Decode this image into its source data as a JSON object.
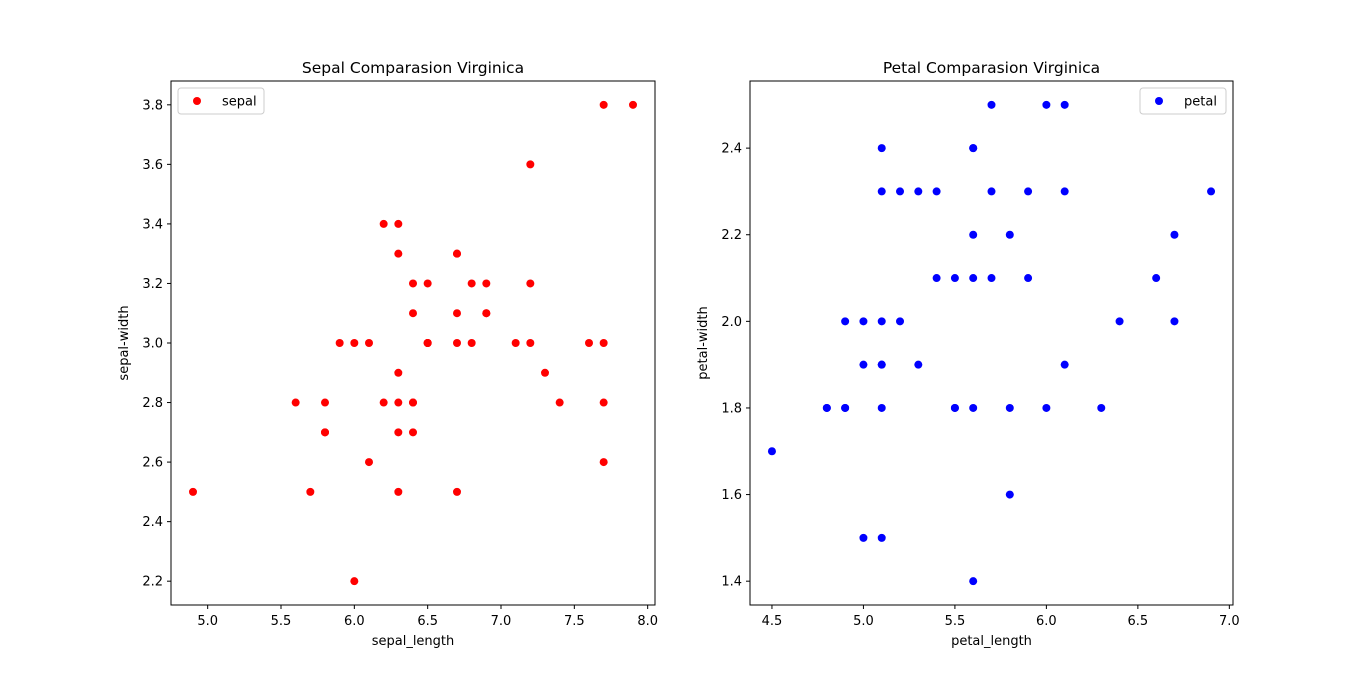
{
  "chart_data": [
    {
      "type": "scatter",
      "title": "Sepal Comparasion Virginica",
      "xlabel": "sepal_length",
      "ylabel": "sepal-width",
      "xlim": [
        4.75,
        8.05
      ],
      "ylim": [
        2.12,
        3.88
      ],
      "xticks": [
        "5.0",
        "5.5",
        "6.0",
        "6.5",
        "7.0",
        "7.5",
        "8.0"
      ],
      "yticks": [
        "2.2",
        "2.4",
        "2.6",
        "2.8",
        "3.0",
        "3.2",
        "3.4",
        "3.6",
        "3.8"
      ],
      "grid": false,
      "legend_position": "upper left",
      "color": "#ff0000",
      "series": [
        {
          "name": "sepal",
          "points": [
            [
              6.3,
              3.3
            ],
            [
              5.8,
              2.7
            ],
            [
              7.1,
              3.0
            ],
            [
              6.3,
              2.9
            ],
            [
              6.5,
              3.0
            ],
            [
              7.6,
              3.0
            ],
            [
              4.9,
              2.5
            ],
            [
              7.3,
              2.9
            ],
            [
              6.7,
              2.5
            ],
            [
              7.2,
              3.6
            ],
            [
              6.5,
              3.2
            ],
            [
              6.4,
              2.7
            ],
            [
              6.8,
              3.0
            ],
            [
              5.7,
              2.5
            ],
            [
              5.8,
              2.8
            ],
            [
              6.4,
              3.2
            ],
            [
              6.5,
              3.0
            ],
            [
              7.7,
              3.8
            ],
            [
              7.7,
              2.6
            ],
            [
              6.0,
              2.2
            ],
            [
              6.9,
              3.2
            ],
            [
              5.6,
              2.8
            ],
            [
              7.7,
              2.8
            ],
            [
              6.3,
              2.7
            ],
            [
              6.7,
              3.3
            ],
            [
              7.2,
              3.2
            ],
            [
              6.2,
              2.8
            ],
            [
              6.1,
              3.0
            ],
            [
              6.4,
              2.8
            ],
            [
              7.2,
              3.0
            ],
            [
              7.4,
              2.8
            ],
            [
              7.9,
              3.8
            ],
            [
              6.4,
              2.8
            ],
            [
              6.3,
              2.8
            ],
            [
              6.1,
              2.6
            ],
            [
              7.7,
              3.0
            ],
            [
              6.3,
              3.4
            ],
            [
              6.4,
              3.1
            ],
            [
              6.0,
              3.0
            ],
            [
              6.9,
              3.1
            ],
            [
              6.7,
              3.1
            ],
            [
              6.9,
              3.1
            ],
            [
              5.8,
              2.7
            ],
            [
              6.8,
              3.2
            ],
            [
              6.7,
              3.3
            ],
            [
              6.7,
              3.0
            ],
            [
              6.3,
              2.5
            ],
            [
              6.5,
              3.0
            ],
            [
              6.2,
              3.4
            ],
            [
              5.9,
              3.0
            ]
          ]
        }
      ]
    },
    {
      "type": "scatter",
      "title": "Petal Comparasion Virginica",
      "xlabel": "petal_length",
      "ylabel": "petal-width",
      "xlim": [
        4.38,
        7.02
      ],
      "ylim": [
        1.345,
        2.555
      ],
      "xticks": [
        "4.5",
        "5.0",
        "5.5",
        "6.0",
        "6.5",
        "7.0"
      ],
      "yticks": [
        "1.4",
        "1.6",
        "1.8",
        "2.0",
        "2.2",
        "2.4"
      ],
      "grid": false,
      "legend_position": "upper right",
      "color": "#0000ff",
      "series": [
        {
          "name": "petal",
          "points": [
            [
              6.0,
              2.5
            ],
            [
              5.1,
              1.9
            ],
            [
              5.9,
              2.1
            ],
            [
              5.6,
              1.8
            ],
            [
              5.8,
              2.2
            ],
            [
              6.6,
              2.1
            ],
            [
              4.5,
              1.7
            ],
            [
              6.3,
              1.8
            ],
            [
              5.8,
              1.8
            ],
            [
              6.1,
              2.5
            ],
            [
              5.1,
              2.0
            ],
            [
              5.3,
              1.9
            ],
            [
              5.5,
              2.1
            ],
            [
              5.0,
              2.0
            ],
            [
              5.1,
              2.4
            ],
            [
              5.3,
              2.3
            ],
            [
              5.5,
              1.8
            ],
            [
              6.7,
              2.2
            ],
            [
              6.9,
              2.3
            ],
            [
              5.0,
              1.5
            ],
            [
              5.7,
              2.3
            ],
            [
              4.9,
              2.0
            ],
            [
              6.7,
              2.0
            ],
            [
              4.9,
              1.8
            ],
            [
              5.7,
              2.1
            ],
            [
              6.0,
              1.8
            ],
            [
              4.8,
              1.8
            ],
            [
              4.9,
              1.8
            ],
            [
              5.6,
              2.1
            ],
            [
              5.8,
              1.6
            ],
            [
              6.1,
              1.9
            ],
            [
              6.4,
              2.0
            ],
            [
              5.6,
              2.2
            ],
            [
              5.1,
              1.5
            ],
            [
              5.6,
              1.4
            ],
            [
              6.1,
              2.3
            ],
            [
              5.6,
              2.4
            ],
            [
              5.5,
              1.8
            ],
            [
              4.8,
              1.8
            ],
            [
              5.4,
              2.1
            ],
            [
              5.6,
              2.4
            ],
            [
              5.1,
              2.3
            ],
            [
              5.1,
              1.9
            ],
            [
              5.9,
              2.3
            ],
            [
              5.7,
              2.5
            ],
            [
              5.2,
              2.3
            ],
            [
              5.0,
              1.9
            ],
            [
              5.2,
              2.0
            ],
            [
              5.4,
              2.3
            ],
            [
              5.1,
              1.8
            ]
          ]
        }
      ]
    }
  ]
}
